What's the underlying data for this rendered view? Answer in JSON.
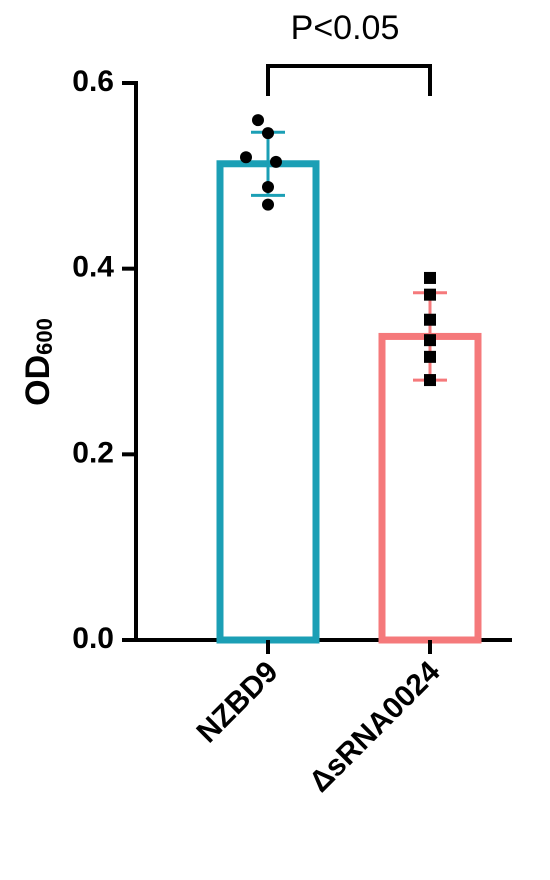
{
  "chart_data": {
    "type": "bar",
    "y_label": "OD",
    "y_label_subscript": "600",
    "annotation": "P<0.05",
    "categories": [
      "NZBD9",
      "ΔsRNA0024"
    ],
    "values": [
      0.513,
      0.327
    ],
    "errors": [
      0.034,
      0.047
    ],
    "colors": [
      "#1b9fb5",
      "#f5797b"
    ],
    "point_markers": [
      "circle",
      "square"
    ],
    "points": [
      [
        0.56,
        0.546,
        0.52,
        0.515,
        0.488,
        0.469
      ],
      [
        0.39,
        0.372,
        0.345,
        0.323,
        0.305,
        0.28
      ]
    ],
    "ylim": [
      0,
      0.6
    ],
    "yticks": [
      {
        "value": 0,
        "label": "0.0"
      },
      {
        "value": 0.2,
        "label": "0.2"
      },
      {
        "value": 0.4,
        "label": "0.4"
      },
      {
        "value": 0.6,
        "label": "0.6"
      }
    ]
  }
}
